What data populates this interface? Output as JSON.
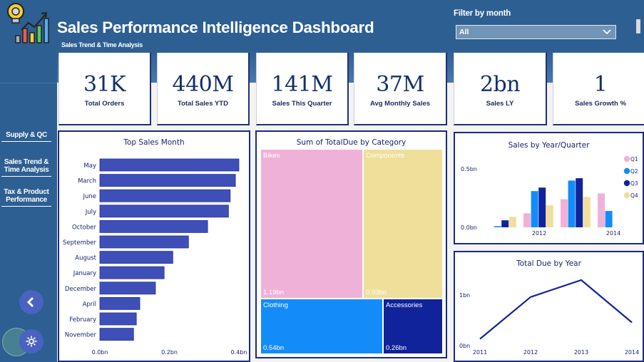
{
  "header": {
    "title": "Sales Performance Intelligence Dashboard",
    "subtitle": "Sales Trend & Time Analysis",
    "filter_label": "Filter by month",
    "filter_value": "All"
  },
  "sidebar": {
    "items": [
      {
        "label": "Supply & QC"
      },
      {
        "label": "Sales Trend & Time Analysis"
      },
      {
        "label": "Tax & Product Performance"
      }
    ],
    "back_icon": "chevron-left-icon",
    "settings_icon": "gear-icon"
  },
  "kpis": [
    {
      "value": "31K",
      "label": "Total Orders"
    },
    {
      "value": "440M",
      "label": "Total Sales YTD"
    },
    {
      "value": "141M",
      "label": "Sales This Quarter"
    },
    {
      "value": "37M",
      "label": "Avg Monthly Sales"
    },
    {
      "value": "2bn",
      "label": "Sales LY"
    },
    {
      "value": "1",
      "label": "Sales Growth %"
    }
  ],
  "chart_data": [
    {
      "type": "bar",
      "orientation": "horizontal",
      "title": "Top Sales Month",
      "categories": [
        "May",
        "March",
        "June",
        "July",
        "October",
        "September",
        "August",
        "January",
        "December",
        "April",
        "February",
        "November"
      ],
      "values": [
        0.4,
        0.39,
        0.375,
        0.37,
        0.31,
        0.255,
        0.21,
        0.185,
        0.16,
        0.115,
        0.105,
        0.097
      ],
      "unit": "bn",
      "xticks": [
        "0.0bn",
        "0.2bn",
        "0.4bn"
      ],
      "xlim": [
        0,
        0.4
      ],
      "color": "#3f4fb8"
    },
    {
      "type": "treemap",
      "title": "Sum of TotalDue by Category",
      "items": [
        {
          "name": "Bikes",
          "value": 1.19,
          "label": "1.19bn",
          "color": "#f0b1d9"
        },
        {
          "name": "Components",
          "value": 0.93,
          "label": "0.93bn",
          "color": "#efdf9b"
        },
        {
          "name": "Clothing",
          "value": 0.54,
          "label": "0.54bn",
          "color": "#138cf9"
        },
        {
          "name": "Accessories",
          "value": 0.26,
          "label": "0.26bn",
          "color": "#11239a"
        }
      ]
    },
    {
      "type": "bar",
      "title": "Sales by Year/Quarter",
      "categories": [
        "2011",
        "2012",
        "2013",
        "2014"
      ],
      "xtick_labels": [
        "",
        "2012",
        "",
        "2014"
      ],
      "series": [
        {
          "name": "Q1",
          "color": "#f0b1d9",
          "values": [
            null,
            0.12,
            0.24,
            0.29
          ]
        },
        {
          "name": "Q2",
          "color": "#138cf9",
          "values": [
            0.01,
            0.31,
            0.4,
            0.14
          ]
        },
        {
          "name": "Q3",
          "color": "#11239a",
          "values": [
            0.06,
            0.34,
            0.42,
            null
          ]
        },
        {
          "name": "Q4",
          "color": "#efdf9b",
          "values": [
            0.09,
            0.19,
            0.26,
            null
          ]
        }
      ],
      "yticks": [
        "0.0bn",
        "0.5bn"
      ],
      "ylim": [
        0,
        0.5
      ],
      "legend": "right"
    },
    {
      "type": "line",
      "title": "Total Due by Year",
      "x": [
        "2011",
        "2012",
        "2013",
        "2014"
      ],
      "values": [
        0.12,
        0.96,
        1.3,
        0.45
      ],
      "yticks": [
        "0bn",
        "1bn"
      ],
      "ylim": [
        0,
        1.5
      ],
      "color": "#11239a"
    }
  ]
}
